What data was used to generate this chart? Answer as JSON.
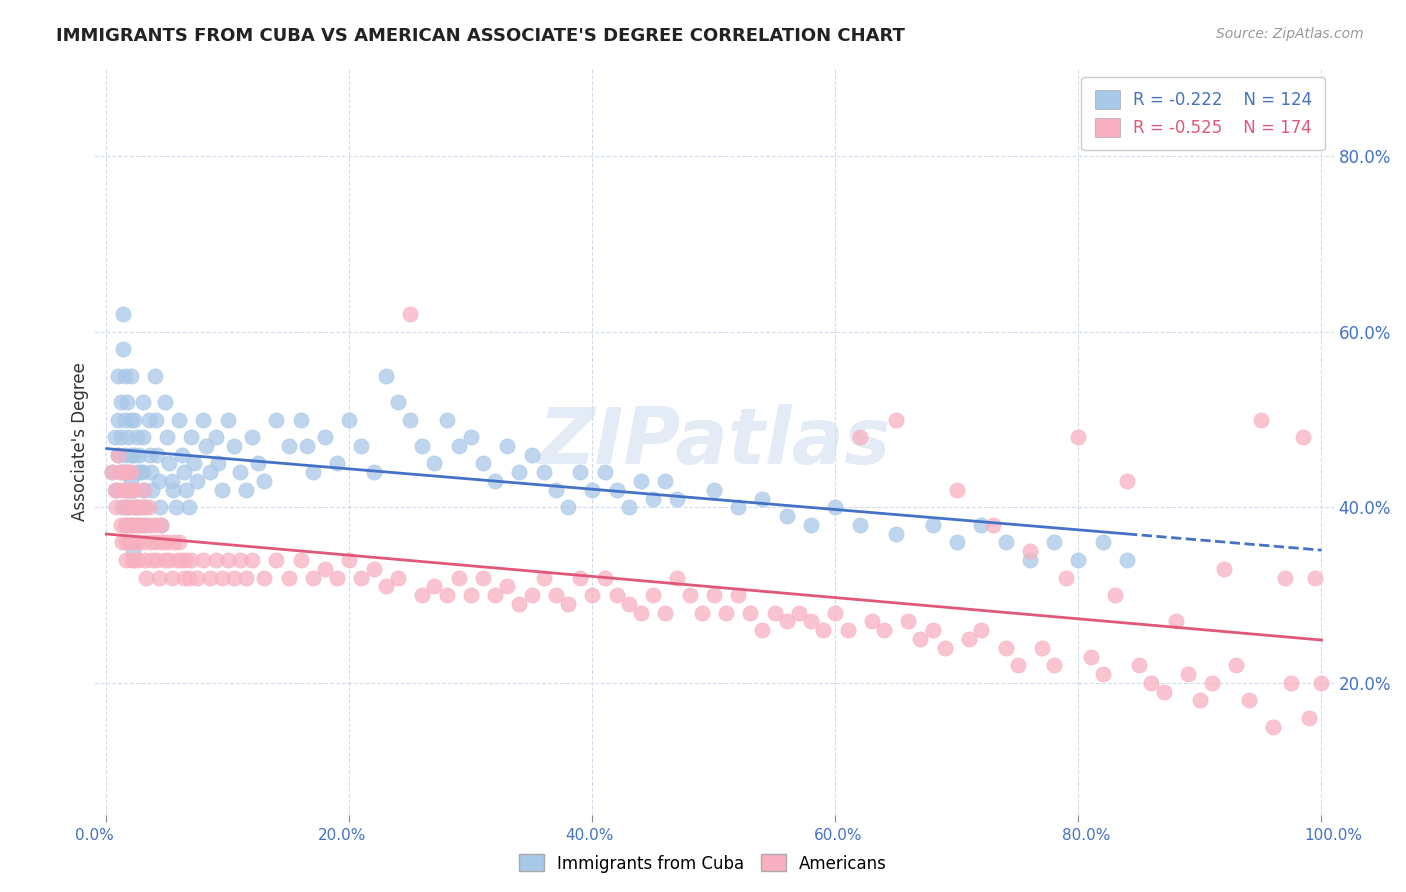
{
  "title": "IMMIGRANTS FROM CUBA VS AMERICAN ASSOCIATE'S DEGREE CORRELATION CHART",
  "source": "Source: ZipAtlas.com",
  "ylabel": "Associate's Degree",
  "legend_labels": [
    "Immigrants from Cuba",
    "Americans"
  ],
  "r_values": [
    -0.222,
    -0.525
  ],
  "n_values": [
    124,
    174
  ],
  "blue_color": "#a8c8e8",
  "pink_color": "#f8b0c0",
  "blue_line_color": "#4472c4",
  "pink_line_color": "#e05878",
  "watermark": "ZIPatlas",
  "xlim": [
    0.0,
    1.0
  ],
  "ylim": [
    0.05,
    0.9
  ],
  "blue_scatter": [
    [
      0.005,
      0.44
    ],
    [
      0.007,
      0.48
    ],
    [
      0.008,
      0.42
    ],
    [
      0.01,
      0.55
    ],
    [
      0.01,
      0.5
    ],
    [
      0.01,
      0.46
    ],
    [
      0.012,
      0.52
    ],
    [
      0.012,
      0.48
    ],
    [
      0.013,
      0.44
    ],
    [
      0.013,
      0.4
    ],
    [
      0.014,
      0.62
    ],
    [
      0.014,
      0.58
    ],
    [
      0.015,
      0.55
    ],
    [
      0.015,
      0.5
    ],
    [
      0.015,
      0.46
    ],
    [
      0.016,
      0.44
    ],
    [
      0.016,
      0.4
    ],
    [
      0.016,
      0.38
    ],
    [
      0.017,
      0.52
    ],
    [
      0.018,
      0.48
    ],
    [
      0.018,
      0.44
    ],
    [
      0.018,
      0.42
    ],
    [
      0.019,
      0.4
    ],
    [
      0.02,
      0.55
    ],
    [
      0.02,
      0.5
    ],
    [
      0.02,
      0.46
    ],
    [
      0.02,
      0.43
    ],
    [
      0.021,
      0.42
    ],
    [
      0.021,
      0.38
    ],
    [
      0.022,
      0.35
    ],
    [
      0.023,
      0.5
    ],
    [
      0.023,
      0.46
    ],
    [
      0.023,
      0.42
    ],
    [
      0.024,
      0.4
    ],
    [
      0.025,
      0.48
    ],
    [
      0.025,
      0.44
    ],
    [
      0.025,
      0.4
    ],
    [
      0.026,
      0.38
    ],
    [
      0.027,
      0.46
    ],
    [
      0.028,
      0.44
    ],
    [
      0.03,
      0.52
    ],
    [
      0.03,
      0.48
    ],
    [
      0.03,
      0.44
    ],
    [
      0.031,
      0.42
    ],
    [
      0.032,
      0.4
    ],
    [
      0.033,
      0.38
    ],
    [
      0.035,
      0.5
    ],
    [
      0.036,
      0.46
    ],
    [
      0.037,
      0.44
    ],
    [
      0.038,
      0.42
    ],
    [
      0.04,
      0.55
    ],
    [
      0.041,
      0.5
    ],
    [
      0.042,
      0.46
    ],
    [
      0.043,
      0.43
    ],
    [
      0.044,
      0.4
    ],
    [
      0.045,
      0.38
    ],
    [
      0.048,
      0.52
    ],
    [
      0.05,
      0.48
    ],
    [
      0.052,
      0.45
    ],
    [
      0.054,
      0.43
    ],
    [
      0.055,
      0.42
    ],
    [
      0.057,
      0.4
    ],
    [
      0.06,
      0.5
    ],
    [
      0.062,
      0.46
    ],
    [
      0.064,
      0.44
    ],
    [
      0.066,
      0.42
    ],
    [
      0.068,
      0.4
    ],
    [
      0.07,
      0.48
    ],
    [
      0.072,
      0.45
    ],
    [
      0.075,
      0.43
    ],
    [
      0.08,
      0.5
    ],
    [
      0.082,
      0.47
    ],
    [
      0.085,
      0.44
    ],
    [
      0.09,
      0.48
    ],
    [
      0.092,
      0.45
    ],
    [
      0.095,
      0.42
    ],
    [
      0.1,
      0.5
    ],
    [
      0.105,
      0.47
    ],
    [
      0.11,
      0.44
    ],
    [
      0.115,
      0.42
    ],
    [
      0.12,
      0.48
    ],
    [
      0.125,
      0.45
    ],
    [
      0.13,
      0.43
    ],
    [
      0.14,
      0.5
    ],
    [
      0.15,
      0.47
    ],
    [
      0.16,
      0.5
    ],
    [
      0.165,
      0.47
    ],
    [
      0.17,
      0.44
    ],
    [
      0.18,
      0.48
    ],
    [
      0.19,
      0.45
    ],
    [
      0.2,
      0.5
    ],
    [
      0.21,
      0.47
    ],
    [
      0.22,
      0.44
    ],
    [
      0.23,
      0.55
    ],
    [
      0.24,
      0.52
    ],
    [
      0.25,
      0.5
    ],
    [
      0.26,
      0.47
    ],
    [
      0.27,
      0.45
    ],
    [
      0.28,
      0.5
    ],
    [
      0.29,
      0.47
    ],
    [
      0.3,
      0.48
    ],
    [
      0.31,
      0.45
    ],
    [
      0.32,
      0.43
    ],
    [
      0.33,
      0.47
    ],
    [
      0.34,
      0.44
    ],
    [
      0.35,
      0.46
    ],
    [
      0.36,
      0.44
    ],
    [
      0.37,
      0.42
    ],
    [
      0.38,
      0.4
    ],
    [
      0.39,
      0.44
    ],
    [
      0.4,
      0.42
    ],
    [
      0.41,
      0.44
    ],
    [
      0.42,
      0.42
    ],
    [
      0.43,
      0.4
    ],
    [
      0.44,
      0.43
    ],
    [
      0.45,
      0.41
    ],
    [
      0.46,
      0.43
    ],
    [
      0.47,
      0.41
    ],
    [
      0.5,
      0.42
    ],
    [
      0.52,
      0.4
    ],
    [
      0.54,
      0.41
    ],
    [
      0.56,
      0.39
    ],
    [
      0.58,
      0.38
    ],
    [
      0.6,
      0.4
    ],
    [
      0.62,
      0.38
    ],
    [
      0.65,
      0.37
    ],
    [
      0.68,
      0.38
    ],
    [
      0.7,
      0.36
    ],
    [
      0.72,
      0.38
    ],
    [
      0.74,
      0.36
    ],
    [
      0.76,
      0.34
    ],
    [
      0.78,
      0.36
    ],
    [
      0.8,
      0.34
    ],
    [
      0.82,
      0.36
    ],
    [
      0.84,
      0.34
    ]
  ],
  "pink_scatter": [
    [
      0.005,
      0.44
    ],
    [
      0.007,
      0.42
    ],
    [
      0.008,
      0.4
    ],
    [
      0.01,
      0.46
    ],
    [
      0.011,
      0.44
    ],
    [
      0.012,
      0.42
    ],
    [
      0.012,
      0.38
    ],
    [
      0.013,
      0.36
    ],
    [
      0.014,
      0.44
    ],
    [
      0.015,
      0.42
    ],
    [
      0.015,
      0.4
    ],
    [
      0.015,
      0.38
    ],
    [
      0.016,
      0.36
    ],
    [
      0.016,
      0.34
    ],
    [
      0.017,
      0.44
    ],
    [
      0.018,
      0.42
    ],
    [
      0.018,
      0.38
    ],
    [
      0.019,
      0.36
    ],
    [
      0.02,
      0.44
    ],
    [
      0.02,
      0.42
    ],
    [
      0.02,
      0.4
    ],
    [
      0.02,
      0.38
    ],
    [
      0.021,
      0.36
    ],
    [
      0.021,
      0.34
    ],
    [
      0.022,
      0.42
    ],
    [
      0.022,
      0.38
    ],
    [
      0.023,
      0.36
    ],
    [
      0.023,
      0.34
    ],
    [
      0.024,
      0.4
    ],
    [
      0.025,
      0.38
    ],
    [
      0.025,
      0.36
    ],
    [
      0.026,
      0.34
    ],
    [
      0.027,
      0.4
    ],
    [
      0.028,
      0.38
    ],
    [
      0.03,
      0.42
    ],
    [
      0.03,
      0.4
    ],
    [
      0.03,
      0.38
    ],
    [
      0.031,
      0.36
    ],
    [
      0.032,
      0.34
    ],
    [
      0.033,
      0.32
    ],
    [
      0.035,
      0.4
    ],
    [
      0.036,
      0.38
    ],
    [
      0.037,
      0.36
    ],
    [
      0.038,
      0.34
    ],
    [
      0.04,
      0.38
    ],
    [
      0.041,
      0.36
    ],
    [
      0.042,
      0.34
    ],
    [
      0.043,
      0.32
    ],
    [
      0.045,
      0.38
    ],
    [
      0.046,
      0.36
    ],
    [
      0.048,
      0.34
    ],
    [
      0.05,
      0.36
    ],
    [
      0.052,
      0.34
    ],
    [
      0.054,
      0.32
    ],
    [
      0.056,
      0.36
    ],
    [
      0.058,
      0.34
    ],
    [
      0.06,
      0.36
    ],
    [
      0.062,
      0.34
    ],
    [
      0.064,
      0.32
    ],
    [
      0.066,
      0.34
    ],
    [
      0.068,
      0.32
    ],
    [
      0.07,
      0.34
    ],
    [
      0.075,
      0.32
    ],
    [
      0.08,
      0.34
    ],
    [
      0.085,
      0.32
    ],
    [
      0.09,
      0.34
    ],
    [
      0.095,
      0.32
    ],
    [
      0.1,
      0.34
    ],
    [
      0.105,
      0.32
    ],
    [
      0.11,
      0.34
    ],
    [
      0.115,
      0.32
    ],
    [
      0.12,
      0.34
    ],
    [
      0.13,
      0.32
    ],
    [
      0.14,
      0.34
    ],
    [
      0.15,
      0.32
    ],
    [
      0.16,
      0.34
    ],
    [
      0.17,
      0.32
    ],
    [
      0.18,
      0.33
    ],
    [
      0.19,
      0.32
    ],
    [
      0.2,
      0.34
    ],
    [
      0.21,
      0.32
    ],
    [
      0.22,
      0.33
    ],
    [
      0.23,
      0.31
    ],
    [
      0.24,
      0.32
    ],
    [
      0.25,
      0.62
    ],
    [
      0.26,
      0.3
    ],
    [
      0.27,
      0.31
    ],
    [
      0.28,
      0.3
    ],
    [
      0.29,
      0.32
    ],
    [
      0.3,
      0.3
    ],
    [
      0.31,
      0.32
    ],
    [
      0.32,
      0.3
    ],
    [
      0.33,
      0.31
    ],
    [
      0.34,
      0.29
    ],
    [
      0.35,
      0.3
    ],
    [
      0.36,
      0.32
    ],
    [
      0.37,
      0.3
    ],
    [
      0.38,
      0.29
    ],
    [
      0.39,
      0.32
    ],
    [
      0.4,
      0.3
    ],
    [
      0.41,
      0.32
    ],
    [
      0.42,
      0.3
    ],
    [
      0.43,
      0.29
    ],
    [
      0.44,
      0.28
    ],
    [
      0.45,
      0.3
    ],
    [
      0.46,
      0.28
    ],
    [
      0.47,
      0.32
    ],
    [
      0.48,
      0.3
    ],
    [
      0.49,
      0.28
    ],
    [
      0.5,
      0.3
    ],
    [
      0.51,
      0.28
    ],
    [
      0.52,
      0.3
    ],
    [
      0.53,
      0.28
    ],
    [
      0.54,
      0.26
    ],
    [
      0.55,
      0.28
    ],
    [
      0.56,
      0.27
    ],
    [
      0.57,
      0.28
    ],
    [
      0.58,
      0.27
    ],
    [
      0.59,
      0.26
    ],
    [
      0.6,
      0.28
    ],
    [
      0.61,
      0.26
    ],
    [
      0.62,
      0.48
    ],
    [
      0.63,
      0.27
    ],
    [
      0.64,
      0.26
    ],
    [
      0.65,
      0.5
    ],
    [
      0.66,
      0.27
    ],
    [
      0.67,
      0.25
    ],
    [
      0.68,
      0.26
    ],
    [
      0.69,
      0.24
    ],
    [
      0.7,
      0.42
    ],
    [
      0.71,
      0.25
    ],
    [
      0.72,
      0.26
    ],
    [
      0.73,
      0.38
    ],
    [
      0.74,
      0.24
    ],
    [
      0.75,
      0.22
    ],
    [
      0.76,
      0.35
    ],
    [
      0.77,
      0.24
    ],
    [
      0.78,
      0.22
    ],
    [
      0.79,
      0.32
    ],
    [
      0.8,
      0.48
    ],
    [
      0.81,
      0.23
    ],
    [
      0.82,
      0.21
    ],
    [
      0.83,
      0.3
    ],
    [
      0.84,
      0.43
    ],
    [
      0.85,
      0.22
    ],
    [
      0.86,
      0.2
    ],
    [
      0.87,
      0.19
    ],
    [
      0.88,
      0.27
    ],
    [
      0.89,
      0.21
    ],
    [
      0.9,
      0.18
    ],
    [
      0.91,
      0.2
    ],
    [
      0.92,
      0.33
    ],
    [
      0.93,
      0.22
    ],
    [
      0.94,
      0.18
    ],
    [
      0.95,
      0.5
    ],
    [
      0.96,
      0.15
    ],
    [
      0.97,
      0.32
    ],
    [
      0.975,
      0.2
    ],
    [
      0.985,
      0.48
    ],
    [
      0.99,
      0.16
    ],
    [
      0.995,
      0.32
    ],
    [
      1.0,
      0.2
    ]
  ]
}
